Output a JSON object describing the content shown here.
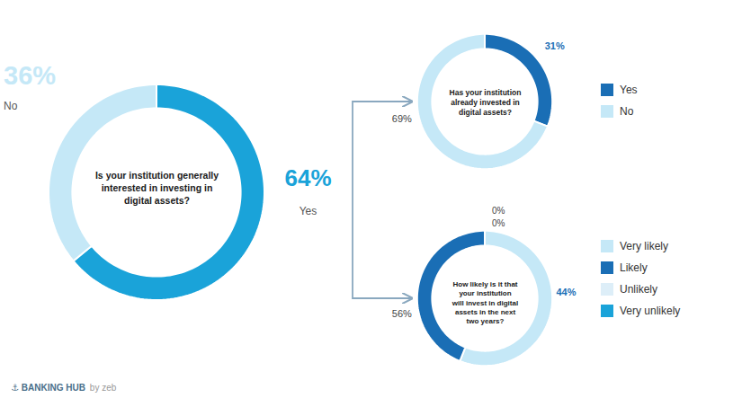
{
  "chart_data": [
    {
      "type": "donut",
      "title": "Is your institution generally\ninterested in investing in\ndigital assets?",
      "categories": [
        "Yes",
        "No"
      ],
      "values": [
        64,
        36
      ],
      "value_labels": [
        "64%",
        "36%"
      ],
      "colors": [
        "#1aa3d9",
        "#c5e8f7"
      ],
      "data_labels": true,
      "annotations": [
        "⚓ BANKING HUB",
        "by zeb"
      ]
    },
    {
      "type": "donut",
      "title": "Has your institution\nalready invested in\ndigital assets?",
      "categories": [
        "Yes",
        "No"
      ],
      "values": [
        31,
        69
      ],
      "value_labels": [
        "31%",
        "69%"
      ],
      "colors": [
        "#1a6eb5",
        "#c5e8f7"
      ],
      "data_labels": true,
      "legend": "right"
    },
    {
      "type": "donut",
      "title": "How likely is it that\nyour institution\nwill invest in digital\nassets in the next\ntwo years?",
      "categories": [
        "Very likely",
        "Likely",
        "Unlikely",
        "Very unlikely"
      ],
      "values": [
        56,
        44,
        0,
        0
      ],
      "value_labels": [
        "56%",
        "44%",
        "0%",
        "0%"
      ],
      "colors": [
        "#c5e8f7",
        "#1a6eb5",
        "#ddeef8",
        "#1aa3d9"
      ],
      "data_labels": true,
      "legend": "right"
    }
  ]
}
